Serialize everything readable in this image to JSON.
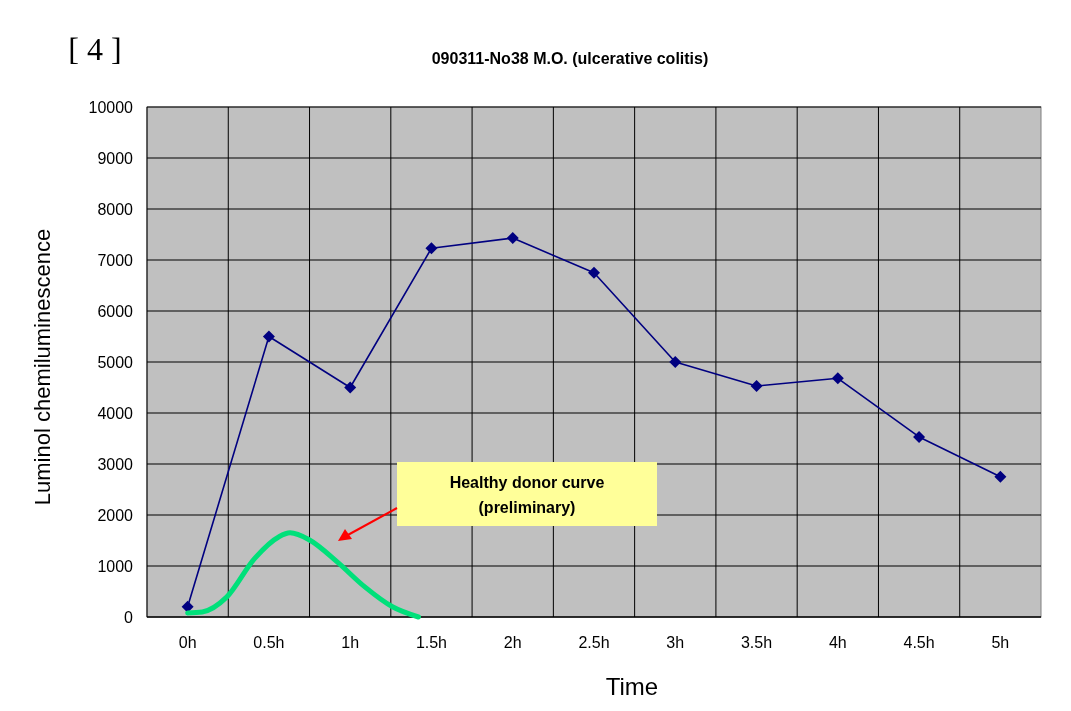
{
  "chart_data": {
    "type": "line",
    "title": "090311-No38 M.O. (ulcerative colitis)",
    "xlabel": "Time",
    "ylabel": "Luminol chemiluminescence",
    "x": [
      0,
      0.5,
      1,
      1.5,
      2,
      2.5,
      3,
      3.5,
      4,
      4.5,
      5
    ],
    "series": [
      {
        "color": "#000080",
        "marker": "diamond",
        "values": [
          200,
          5500,
          4500,
          7230,
          7430,
          6750,
          5000,
          4530,
          4680,
          3530,
          2750
        ]
      },
      {
        "color": "#00e07a",
        "marker": "none",
        "x": [
          0,
          0.09,
          0.24,
          0.41,
          0.56,
          0.63,
          0.75,
          0.92,
          1.09,
          1.26,
          1.42
        ],
        "values": [
          80,
          100,
          390,
          1140,
          1570,
          1650,
          1510,
          1080,
          590,
          200,
          0
        ]
      }
    ],
    "xlim": [
      -0.25,
      5.25
    ],
    "xticks": [
      {
        "value": 0,
        "label": "0h"
      },
      {
        "value": 0.5,
        "label": "0.5h"
      },
      {
        "value": 1,
        "label": "1h"
      },
      {
        "value": 1.5,
        "label": "1.5h"
      },
      {
        "value": 2,
        "label": "2h"
      },
      {
        "value": 2.5,
        "label": "2.5h"
      },
      {
        "value": 3,
        "label": "3h"
      },
      {
        "value": 3.5,
        "label": "3.5h"
      },
      {
        "value": 4,
        "label": "4h"
      },
      {
        "value": 4.5,
        "label": "4.5h"
      },
      {
        "value": 5,
        "label": "5h"
      }
    ],
    "ylim": [
      0,
      10000
    ],
    "yticks": [
      0,
      1000,
      2000,
      3000,
      4000,
      5000,
      6000,
      7000,
      8000,
      9000,
      10000
    ],
    "grid": true,
    "annotations": [
      "[ 4 ]",
      "Healthy donor curve\n(preliminary)"
    ]
  }
}
